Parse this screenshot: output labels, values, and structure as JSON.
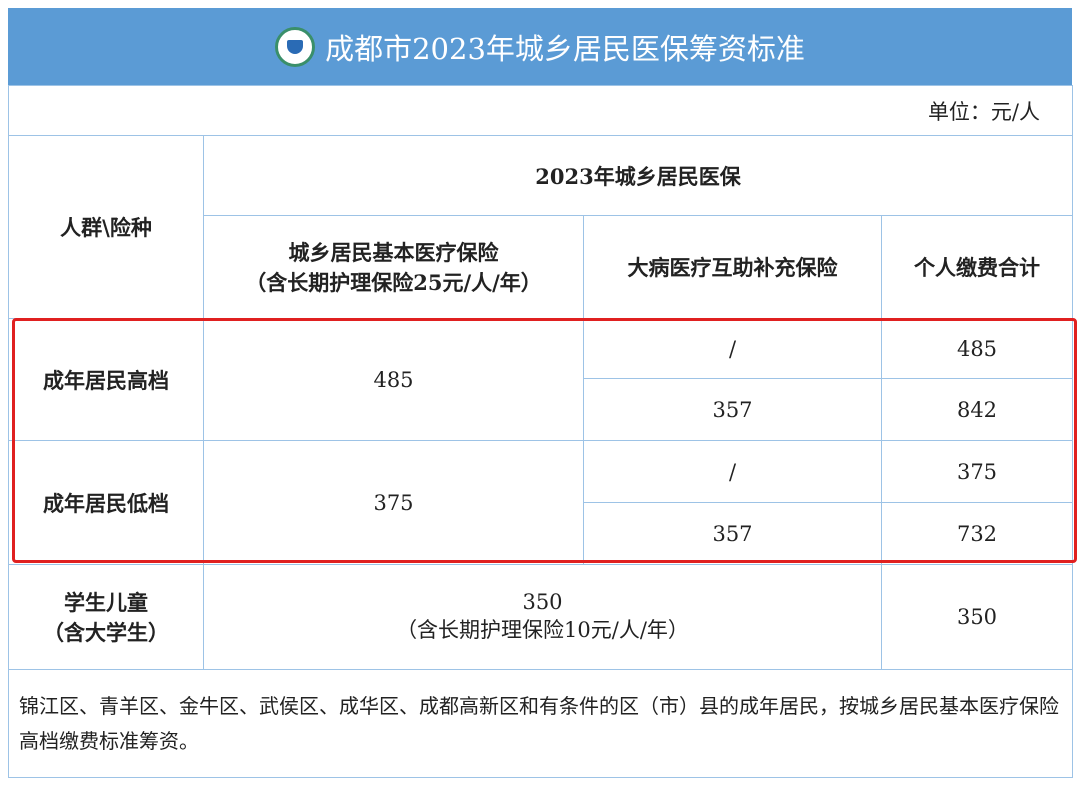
{
  "title": "成都市2023年城乡居民医保筹资标准",
  "logo_icon": "medical-insurance-logo",
  "unit": "单位：元/人",
  "headers": {
    "group": "人群\\险种",
    "span": "2023年城乡居民医保",
    "basic_line1": "城乡居民基本医疗保险",
    "basic_line2": "（含长期护理保险25元/人/年）",
    "serious": "大病医疗互助补充保险",
    "total": "个人缴费合计"
  },
  "rows": [
    {
      "group": "成年居民高档",
      "basic": "485",
      "options": [
        {
          "serious": "/",
          "total": "485"
        },
        {
          "serious": "357",
          "total": "842"
        }
      ]
    },
    {
      "group": "成年居民低档",
      "basic": "375",
      "options": [
        {
          "serious": "/",
          "total": "375"
        },
        {
          "serious": "357",
          "total": "732"
        }
      ]
    }
  ],
  "student": {
    "group_line1": "学生儿童",
    "group_line2": "（含大学生）",
    "basic_line1": "350",
    "basic_line2": "（含长期护理保险10元/人/年）",
    "total": "350"
  },
  "note": "锦江区、青羊区、金牛区、武侯区、成华区、成都高新区和有条件的区（市）县的成年居民，按城乡居民基本医疗保险高档缴费标准筹资。",
  "colors": {
    "header": "#5b9bd5",
    "border": "#9dc3e6",
    "highlight": "#e02020"
  }
}
